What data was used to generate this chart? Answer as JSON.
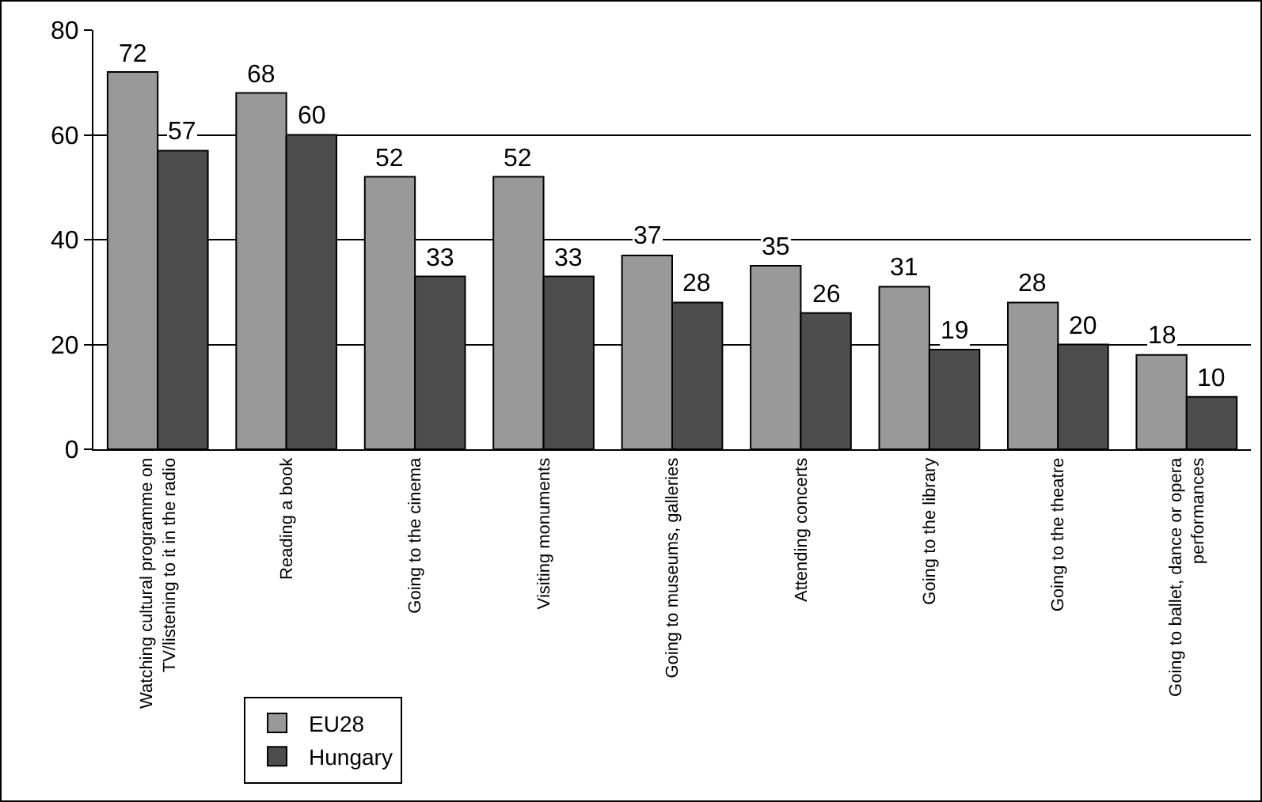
{
  "chart_data": {
    "type": "bar",
    "categories": [
      "Watching cultural programme on TV/listening to it in the radio",
      "Reading a book",
      "Going to the cinema",
      "Visiting monuments",
      "Going to museums, galleries",
      "Attending concerts",
      "Going to the library",
      "Going to the theatre",
      "Going to ballet, dance or opera performances"
    ],
    "series": [
      {
        "name": "EU28",
        "color": "#999999",
        "values": [
          72,
          68,
          52,
          52,
          37,
          35,
          31,
          28,
          18
        ]
      },
      {
        "name": "Hungary",
        "color": "#4d4d4d",
        "values": [
          57,
          60,
          33,
          33,
          28,
          26,
          19,
          20,
          10
        ]
      }
    ],
    "ylim": [
      0,
      80
    ],
    "yticks": [
      0,
      20,
      40,
      60,
      80
    ],
    "grid": "y",
    "legend": "bottom left",
    "data_labels": true
  }
}
